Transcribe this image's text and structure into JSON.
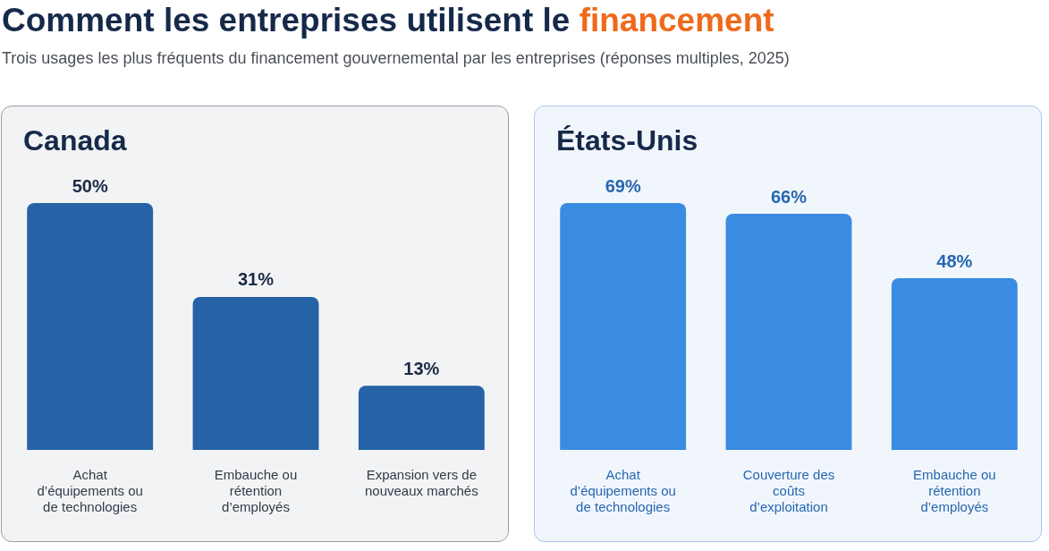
{
  "chart_data": [
    {
      "type": "other",
      "title": "Comment les entreprises utilisent le financement",
      "subtitle": "Trois usages les plus fréquents du financement gouvernemental par les entreprises (réponses multiples, 2025)"
    },
    {
      "type": "bar",
      "title": "Canada",
      "categories": [
        "Achat d’équipements ou de technologies",
        "Embauche ou rétention d’employés",
        "Expansion vers de nouveaux marchés"
      ],
      "values": [
        50,
        31,
        13
      ],
      "value_labels": [
        "50%",
        "31%",
        "13%"
      ],
      "color": "#2662a6"
    },
    {
      "type": "bar",
      "title": "États-Unis",
      "categories": [
        "Achat d’équipements ou de technologies",
        "Couverture des coûts d’exploitation",
        "Embauche ou rétention d’employés"
      ],
      "values": [
        69,
        66,
        48
      ],
      "value_labels": [
        "69%",
        "66%",
        "48%"
      ],
      "color": "#3a8be2"
    }
  ]
}
